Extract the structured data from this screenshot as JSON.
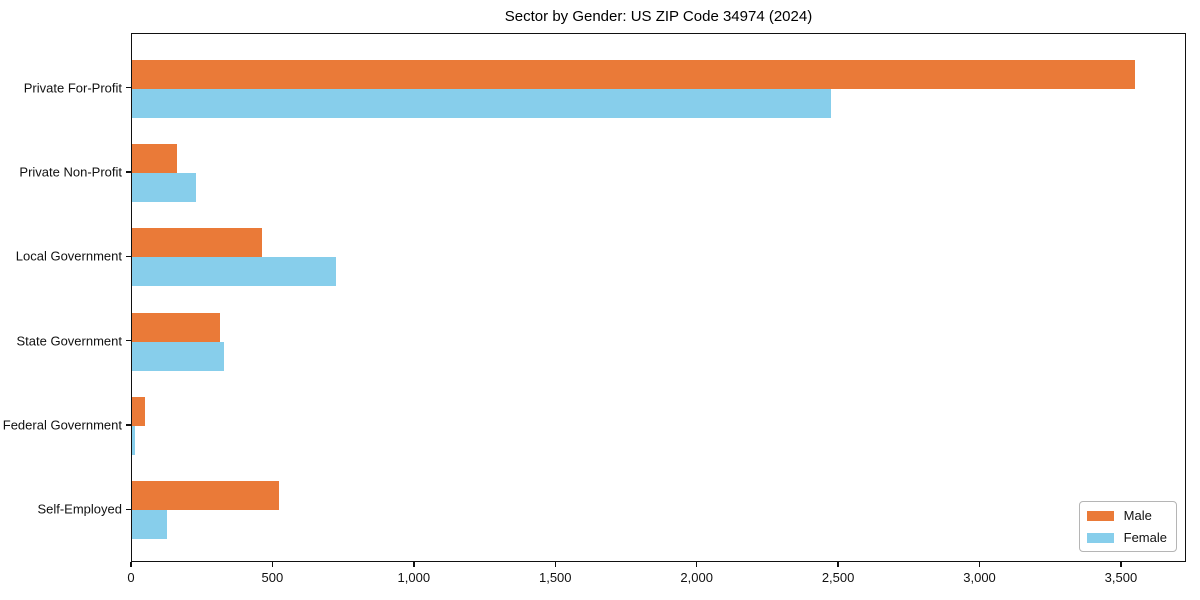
{
  "chart_data": {
    "type": "bar",
    "orientation": "horizontal",
    "title": "Sector by Gender: US ZIP Code 34974 (2024)",
    "categories": [
      "Private For-Profit",
      "Private Non-Profit",
      "Local Government",
      "State Government",
      "Federal Government",
      "Self-Employed"
    ],
    "series": [
      {
        "name": "Male",
        "color": "#EA7A38",
        "values": [
          3545,
          160,
          460,
          310,
          47,
          520
        ]
      },
      {
        "name": "Female",
        "color": "#87CEEB",
        "values": [
          2470,
          225,
          720,
          325,
          10,
          125
        ]
      }
    ],
    "xlabel": "",
    "ylabel": "",
    "xlim": [
      0,
      3730
    ],
    "xticks": [
      0,
      500,
      1000,
      1500,
      2000,
      2500,
      3000,
      3500
    ],
    "xtick_labels": [
      "0",
      "500",
      "1,000",
      "1,500",
      "2,000",
      "2,500",
      "3,000",
      "3,500"
    ],
    "grid": false,
    "legend_position": "lower right",
    "legend_labels": [
      "Male",
      "Female"
    ]
  }
}
